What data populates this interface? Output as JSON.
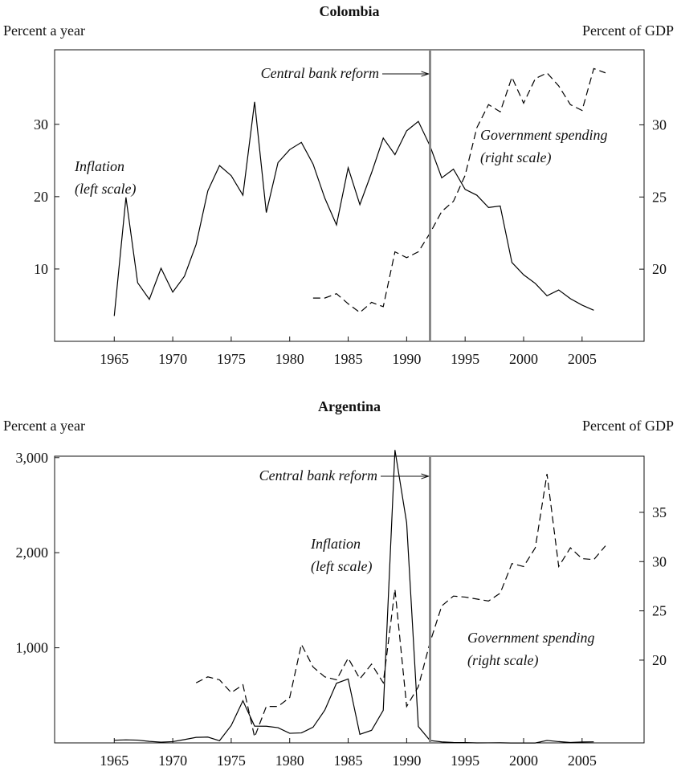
{
  "chart_data": [
    {
      "type": "line",
      "title": "Colombia",
      "y_label": "Percent a year",
      "y2_label": "Percent of GDP",
      "x": [
        1965,
        1966,
        1967,
        1968,
        1969,
        1970,
        1971,
        1972,
        1973,
        1974,
        1975,
        1976,
        1977,
        1978,
        1979,
        1980,
        1981,
        1982,
        1983,
        1984,
        1985,
        1986,
        1987,
        1988,
        1989,
        1990,
        1991,
        1992,
        1993,
        1994,
        1995,
        1996,
        1997,
        1998,
        1999,
        2000,
        2001,
        2002,
        2003,
        2004,
        2005,
        2006,
        2007
      ],
      "series": [
        {
          "name": "Inflation",
          "color": "#000000",
          "line_style": "solid",
          "values": [
            3.5,
            19.9,
            8.1,
            5.8,
            10.1,
            6.8,
            9.0,
            13.4,
            20.8,
            24.3,
            22.9,
            20.2,
            33.1,
            17.8,
            24.7,
            26.5,
            27.5,
            24.5,
            19.8,
            16.1,
            24.0,
            18.9,
            23.3,
            28.1,
            25.8,
            29.1,
            30.4,
            27.0,
            22.6,
            23.8,
            21.0,
            20.2,
            18.5,
            18.7,
            10.9,
            9.2,
            8.0,
            6.3,
            7.1,
            5.9,
            5.0,
            4.3,
            null
          ]
        },
        {
          "name": "Government spending",
          "color": "#000000",
          "line_style": "dashed",
          "axis": "y2",
          "values": [
            null,
            null,
            null,
            null,
            null,
            null,
            null,
            null,
            null,
            null,
            null,
            null,
            null,
            null,
            null,
            null,
            null,
            18.0,
            18.0,
            18.3,
            17.6,
            17.0,
            17.7,
            17.4,
            21.2,
            20.8,
            21.2,
            22.5,
            24.0,
            24.7,
            26.5,
            29.8,
            31.4,
            30.9,
            33.3,
            31.5,
            33.2,
            33.6,
            32.7,
            31.4,
            31.0,
            33.9,
            33.6
          ]
        }
      ],
      "xlim": [
        1959.9,
        2010.3
      ],
      "xticks": [
        1965,
        1970,
        1975,
        1980,
        1985,
        1990,
        1995,
        2000,
        2005
      ],
      "ylim": [
        0,
        40.3
      ],
      "yticks": [
        10,
        20,
        30
      ],
      "y2lim": [
        15,
        35.2
      ],
      "y2ticks": [
        20,
        25,
        30
      ],
      "reference_line": {
        "x": 1992,
        "label": "Central bank reform"
      },
      "annotations": [
        [
          "Inflation",
          "(left scale)"
        ],
        [
          "Government spending",
          "(right scale)"
        ]
      ]
    },
    {
      "type": "line",
      "title": "Argentina",
      "y_label": "Percent a year",
      "y2_label": "Percent of GDP",
      "x": [
        1965,
        1966,
        1967,
        1968,
        1969,
        1970,
        1971,
        1972,
        1973,
        1974,
        1975,
        1976,
        1977,
        1978,
        1979,
        1980,
        1981,
        1982,
        1983,
        1984,
        1985,
        1986,
        1987,
        1988,
        1989,
        1990,
        1991,
        1992,
        1993,
        1994,
        1995,
        1996,
        1997,
        1998,
        1999,
        2000,
        2001,
        2002,
        2003,
        2004,
        2005,
        2006,
        2007
      ],
      "series": [
        {
          "name": "Inflation",
          "color": "#000000",
          "line_style": "solid",
          "values": [
            28,
            32,
            29,
            16,
            8,
            13,
            35,
            58,
            61,
            23,
            183,
            443,
            176,
            175,
            160,
            101,
            105,
            165,
            344,
            627,
            672,
            90,
            132,
            343,
            3080,
            2314,
            172,
            25,
            10.6,
            4.2,
            3.4,
            0.2,
            0.5,
            0.9,
            -1.2,
            -0.9,
            -1.1,
            25.9,
            13.4,
            4.4,
            9.6,
            10.9,
            null
          ]
        },
        {
          "name": "Government spending",
          "color": "#000000",
          "line_style": "dashed",
          "axis": "y2",
          "values": [
            null,
            null,
            null,
            null,
            null,
            null,
            null,
            17.7,
            18.3,
            18.0,
            16.7,
            17.5,
            12.2,
            15.3,
            15.3,
            16.2,
            21.6,
            19.3,
            18.3,
            18.0,
            20.2,
            18.1,
            19.6,
            17.7,
            27.2,
            15.3,
            17.3,
            21.8,
            25.5,
            26.5,
            26.4,
            26.2,
            26.0,
            26.8,
            29.8,
            29.5,
            31.4,
            38.9,
            29.5,
            31.4,
            30.3,
            30.2,
            31.6
          ]
        }
      ],
      "xlim": [
        1959.9,
        2010.3
      ],
      "xticks": [
        1965,
        1970,
        1975,
        1980,
        1985,
        1990,
        1995,
        2000,
        2005
      ],
      "ylim": [
        0,
        3015
      ],
      "yticks": [
        {
          "value": 1000,
          "label": "1,000"
        },
        {
          "value": 2000,
          "label": "2,000"
        },
        {
          "value": 3000,
          "label": "3,000"
        }
      ],
      "y2lim": [
        11.6,
        40.7
      ],
      "y2ticks": [
        20,
        25,
        30,
        35
      ],
      "reference_line": {
        "x": 1992,
        "label": "Central bank reform"
      },
      "annotations": [
        [
          "Inflation",
          "(left scale)"
        ],
        [
          "Government spending",
          "(right scale)"
        ]
      ]
    }
  ]
}
